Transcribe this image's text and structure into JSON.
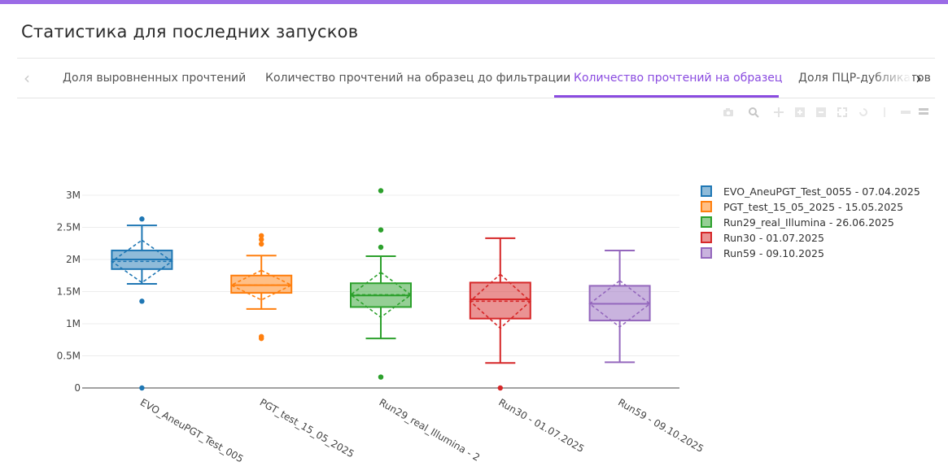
{
  "page": {
    "title": "Статистика для последних запусков"
  },
  "tabs": [
    {
      "label": "Доля выровненных прочтений",
      "active": false
    },
    {
      "label": "Количество прочтений на образец до фильтрации",
      "active": false
    },
    {
      "label": "Количество прочтений на образец",
      "active": true
    },
    {
      "label": "Доля ПЦР-дубликатов",
      "active": false
    }
  ],
  "icons": {
    "prev": "chevron-left-icon",
    "next": "chevron-right-icon",
    "modebar": [
      "camera-icon",
      "zoom-icon",
      "pan-icon",
      "zoom-in-icon",
      "zoom-out-icon",
      "autoscale-icon",
      "reset-axes-icon",
      "spike-lines-icon",
      "compare-icon",
      "hover-icon"
    ]
  },
  "chart_data": {
    "type": "box",
    "title": "",
    "xlabel": "",
    "ylabel": "",
    "ylim": [
      -0.15,
      3.5
    ],
    "y_unit": "M",
    "yticks": [
      0,
      0.5,
      1,
      1.5,
      2,
      2.5,
      3
    ],
    "ytick_labels": [
      "0",
      "0.5M",
      "1M",
      "1.5M",
      "2M",
      "2.5M",
      "3M"
    ],
    "grid": true,
    "legend_position": "top-right",
    "boxmean": "sd",
    "categories": [
      "EVO_AneuPGT_Test_0055 - 07.04.2025",
      "PGT_test_15_05_2025 - 15.05.2025",
      "Run29_real_Illumina - 26.06.2025",
      "Run30 - 01.07.2025",
      "Run59 - 09.10.2025"
    ],
    "tick_labels": [
      "EVO_AneuPGT_Test_005",
      "PGT_test_15_05_2025",
      "Run29_real_Illumina - 2",
      "Run30 - 01.07.2025",
      "Run59 - 09.10.2025"
    ],
    "series": [
      {
        "name": "EVO_AneuPGT_Test_0055 - 07.04.2025",
        "color": "#1f77b4",
        "whisker_low": 1.62,
        "q1": 1.85,
        "median": 2.0,
        "q3": 2.14,
        "whisker_high": 2.53,
        "mean": 1.97,
        "sd": 0.33,
        "outliers": [
          2.63,
          1.35,
          0.0
        ]
      },
      {
        "name": "PGT_test_15_05_2025 - 15.05.2025",
        "color": "#ff7f0e",
        "whisker_low": 1.23,
        "q1": 1.48,
        "median": 1.6,
        "q3": 1.75,
        "whisker_high": 2.06,
        "mean": 1.6,
        "sd": 0.23,
        "outliers": [
          2.37,
          2.31,
          2.24,
          0.8,
          0.77
        ]
      },
      {
        "name": "Run29_real_Illumina - 26.06.2025",
        "color": "#2ca02c",
        "whisker_low": 0.77,
        "q1": 1.26,
        "median": 1.44,
        "q3": 1.63,
        "whisker_high": 2.05,
        "mean": 1.45,
        "sd": 0.35,
        "outliers": [
          3.07,
          2.46,
          2.19,
          0.17
        ]
      },
      {
        "name": "Run30 - 01.07.2025",
        "color": "#d62728",
        "whisker_low": 0.39,
        "q1": 1.08,
        "median": 1.38,
        "q3": 1.64,
        "whisker_high": 2.33,
        "mean": 1.35,
        "sd": 0.42,
        "outliers": [
          0.0
        ]
      },
      {
        "name": "Run59 - 09.10.2025",
        "color": "#9467bd",
        "whisker_low": 0.4,
        "q1": 1.05,
        "median": 1.31,
        "q3": 1.59,
        "whisker_high": 2.14,
        "mean": 1.31,
        "sd": 0.36,
        "outliers": []
      }
    ]
  }
}
